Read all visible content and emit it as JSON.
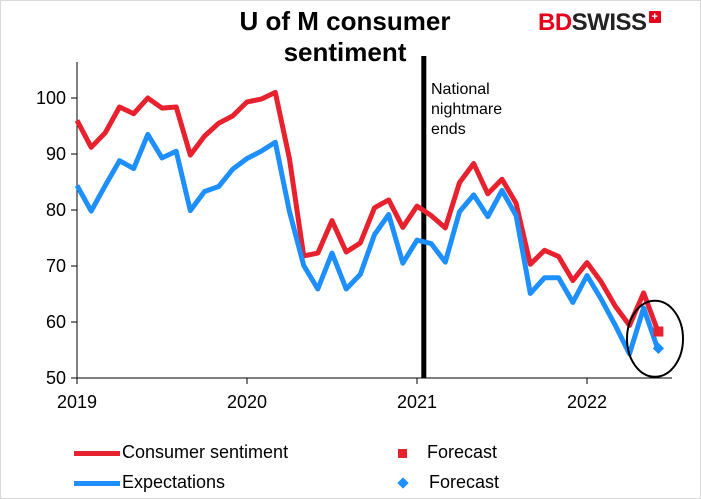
{
  "chart_data": {
    "type": "line",
    "title": "U of M consumer sentiment",
    "logo": {
      "part1": "BD",
      "part2": "SWISS",
      "mark": "+"
    },
    "xlabel": "",
    "ylabel": "",
    "xlim": [
      2019.0,
      2022.5
    ],
    "ylim": [
      50,
      105
    ],
    "y_ticks": [
      50,
      60,
      70,
      80,
      90,
      100
    ],
    "x_ticks": [
      {
        "value": 2019.0,
        "label": "2019"
      },
      {
        "value": 2020.0,
        "label": "2020"
      },
      {
        "value": 2021.0,
        "label": "2021"
      },
      {
        "value": 2022.0,
        "label": "2022"
      }
    ],
    "annotation": {
      "x": 2021.04,
      "lines": [
        "National",
        "nightmare",
        "ends"
      ]
    },
    "series": [
      {
        "name": "Consumer sentiment",
        "color": "#e8212e",
        "start": 2019.0,
        "step": 0.08333,
        "values": [
          96.0,
          91.2,
          93.8,
          98.4,
          97.2,
          100.0,
          98.2,
          98.4,
          89.8,
          93.2,
          95.5,
          96.8,
          99.3,
          99.8,
          101.0,
          89.1,
          71.8,
          72.3,
          78.1,
          72.5,
          74.1,
          80.4,
          81.8,
          76.9,
          80.7,
          79.0,
          76.8,
          84.9,
          88.3,
          82.9,
          85.5,
          81.2,
          70.3,
          72.8,
          71.7,
          67.4,
          70.6,
          67.2,
          62.8,
          59.4,
          65.2,
          58.4
        ]
      },
      {
        "name": "Expectations",
        "color": "#1e8fff",
        "start": 2019.0,
        "step": 0.08333,
        "values": [
          84.4,
          79.8,
          84.4,
          88.8,
          87.4,
          93.5,
          89.3,
          90.5,
          79.9,
          83.3,
          84.2,
          87.3,
          89.2,
          90.5,
          92.1,
          79.7,
          70.1,
          65.9,
          72.3,
          65.9,
          68.5,
          75.6,
          79.2,
          70.5,
          74.6,
          74.0,
          70.7,
          79.7,
          82.7,
          78.8,
          83.5,
          79.0,
          65.1,
          67.9,
          67.9,
          63.5,
          68.3,
          64.1,
          59.4,
          54.3,
          62.5,
          55.2
        ]
      }
    ],
    "forecasts": [
      {
        "name": "Forecast",
        "x": 2022.42,
        "value": 58.3,
        "color": "#e8212e",
        "marker": "square"
      },
      {
        "name": "Forecast",
        "x": 2022.42,
        "value": 55.3,
        "color": "#1e8fff",
        "marker": "diamond"
      }
    ],
    "highlight_circle": {
      "x": 2022.4,
      "value": 57.0
    }
  }
}
